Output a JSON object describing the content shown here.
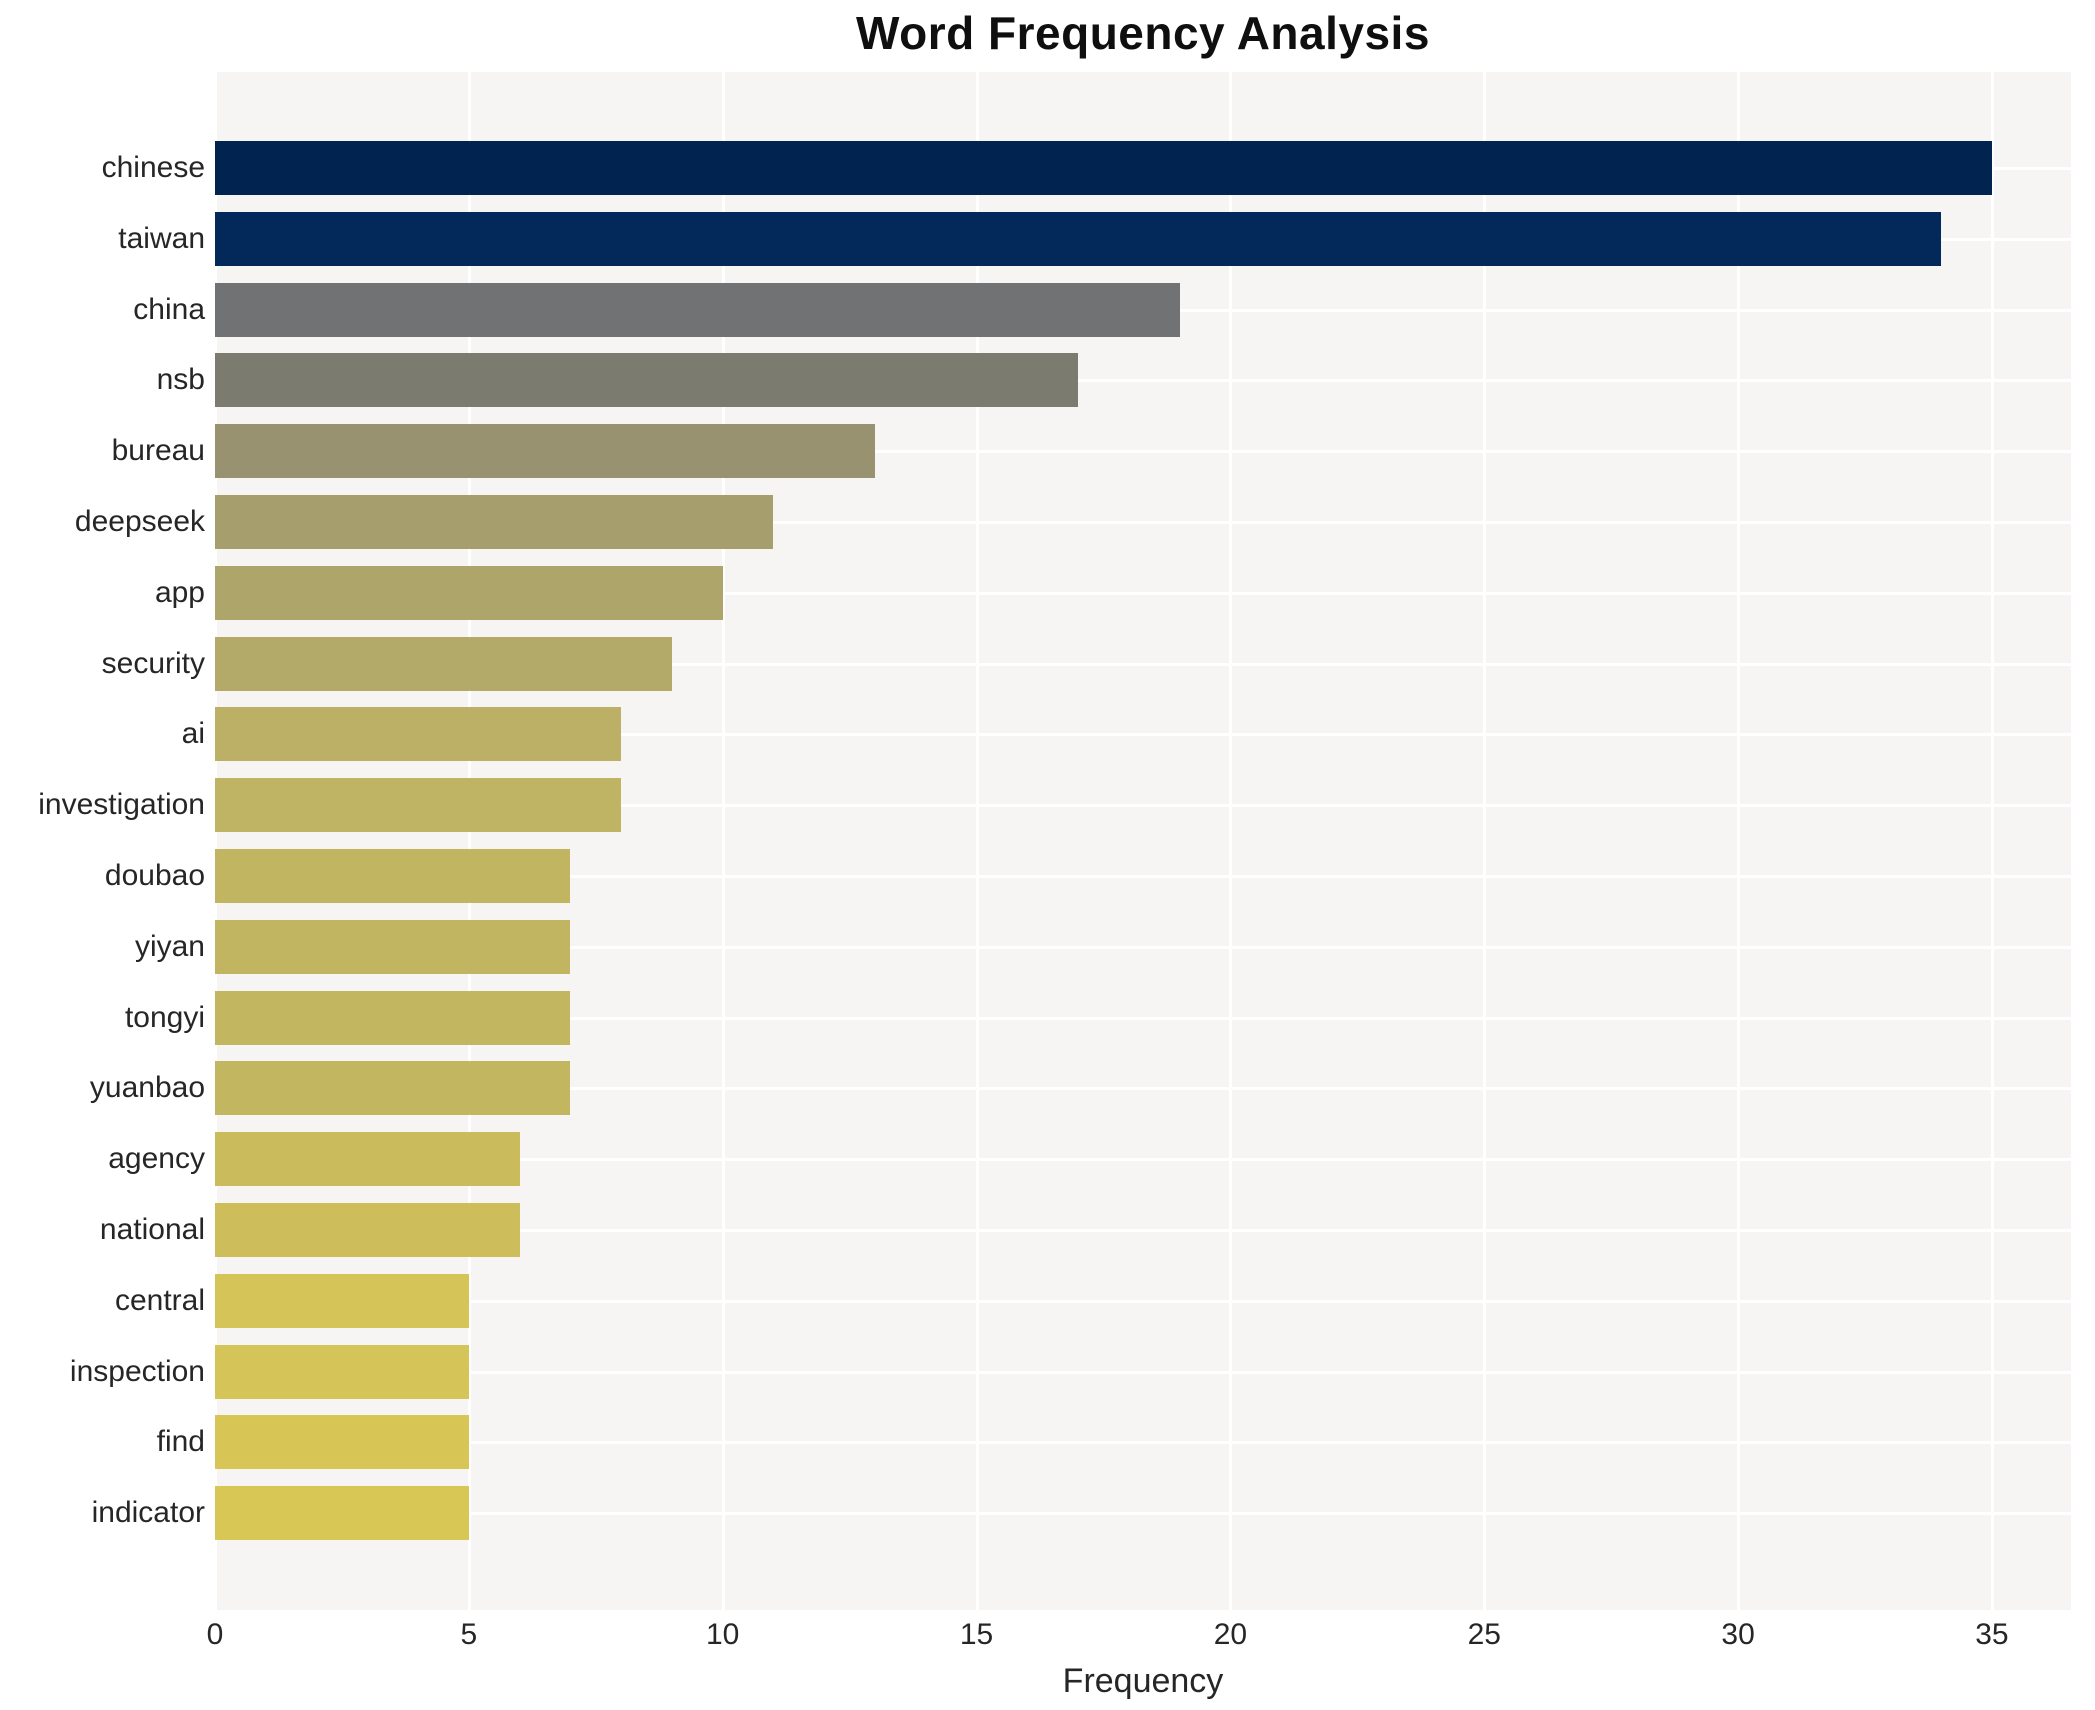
{
  "chart_data": {
    "type": "bar",
    "orientation": "horizontal",
    "title": "Word Frequency Analysis",
    "xlabel": "Frequency",
    "ylabel": "",
    "categories": [
      "chinese",
      "taiwan",
      "china",
      "nsb",
      "bureau",
      "deepseek",
      "app",
      "security",
      "ai",
      "investigation",
      "doubao",
      "yiyan",
      "tongyi",
      "yuanbao",
      "agency",
      "national",
      "central",
      "inspection",
      "find",
      "indicator"
    ],
    "values": [
      35,
      34,
      19,
      17,
      13,
      11,
      10,
      9,
      8,
      8,
      7,
      7,
      7,
      7,
      6,
      6,
      5,
      5,
      5,
      5
    ],
    "bar_colors": [
      "#00234f",
      "#03285a",
      "#717274",
      "#7c7b70",
      "#989270",
      "#a79e6d",
      "#aea56a",
      "#b3aa69",
      "#bbb065",
      "#bfb364",
      "#c2b561",
      "#c2b561",
      "#c3b660",
      "#c3b660",
      "#cabc5d",
      "#cdbe5b",
      "#d5c457",
      "#d5c457",
      "#d7c556",
      "#d8c655"
    ],
    "xticks": [
      0,
      5,
      10,
      15,
      20,
      25,
      30,
      35
    ],
    "xlim": [
      0,
      36.5
    ],
    "grid": "on",
    "legend": "none",
    "plot_background": "#f6f5f3",
    "grid_color": "#ffffff",
    "text_color": "#262626",
    "title_color": "#0f0f0f"
  }
}
